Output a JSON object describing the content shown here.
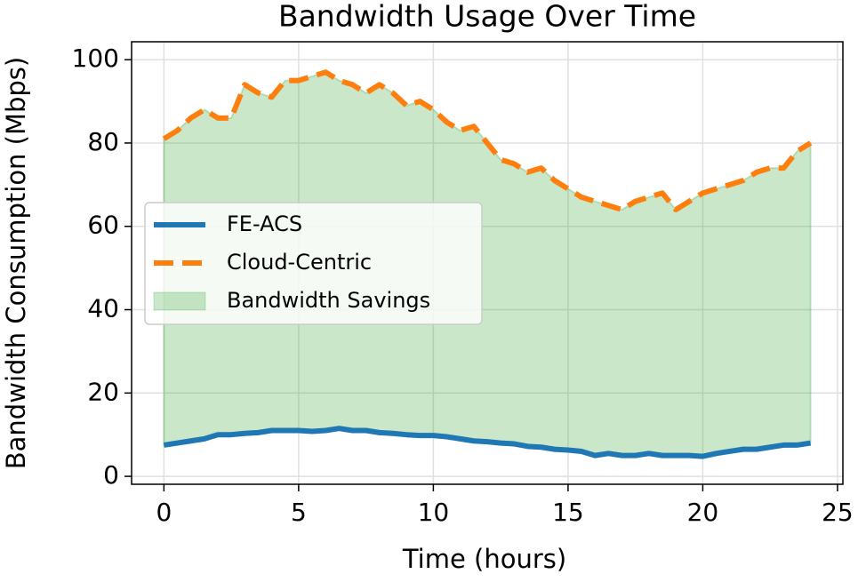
{
  "chart_data": {
    "type": "line",
    "title": "Bandwidth Usage Over Time",
    "xlabel": "Time (hours)",
    "ylabel": "Bandwidth Consumption (Mbps)",
    "x": [
      0,
      0.5,
      1,
      1.5,
      2,
      2.5,
      3,
      3.5,
      4,
      4.5,
      5,
      5.5,
      6,
      6.5,
      7,
      7.5,
      8,
      8.5,
      9,
      9.5,
      10,
      10.5,
      11,
      11.5,
      12,
      12.5,
      13,
      13.5,
      14,
      14.5,
      15,
      15.5,
      16,
      16.5,
      17,
      17.5,
      18,
      18.5,
      19,
      19.5,
      20,
      20.5,
      21,
      21.5,
      22,
      22.5,
      23,
      23.5,
      24
    ],
    "series": [
      {
        "name": "FE-ACS",
        "color": "#1f77b4",
        "style": "solid",
        "values": [
          7.5,
          8,
          8.5,
          9,
          10,
          10,
          10.3,
          10.5,
          11,
          11,
          11,
          10.8,
          11,
          11.5,
          11,
          11,
          10.5,
          10.3,
          10,
          9.8,
          9.8,
          9.5,
          9,
          8.5,
          8.3,
          8,
          7.8,
          7.2,
          7,
          6.5,
          6.3,
          6,
          5,
          5.5,
          5,
          5,
          5.5,
          5,
          5,
          5,
          4.8,
          5.5,
          6,
          6.5,
          6.5,
          7,
          7.5,
          7.5,
          8
        ]
      },
      {
        "name": "Cloud-Centric",
        "color": "#ff7f0e",
        "style": "dashed",
        "values": [
          81,
          83,
          86,
          88,
          86,
          86,
          94,
          92,
          91,
          95,
          95,
          96,
          97,
          95,
          94,
          92,
          94,
          92,
          89,
          90,
          88,
          85,
          83,
          84,
          80,
          76,
          75,
          73,
          74,
          71,
          69,
          67,
          66,
          65,
          64,
          66,
          67,
          68,
          64,
          66,
          68,
          69,
          70,
          71,
          73,
          74,
          74,
          78,
          80
        ]
      }
    ],
    "fill": {
      "name": "Bandwidth Savings",
      "color": "#2ca02c",
      "opacity": 0.25
    },
    "xlim": [
      -1.2,
      25.2
    ],
    "ylim": [
      -1.9,
      104.3
    ],
    "xticks": [
      0,
      5,
      10,
      15,
      20,
      25
    ],
    "yticks": [
      0,
      20,
      40,
      60,
      80,
      100
    ],
    "grid": true,
    "legend": "center left"
  }
}
